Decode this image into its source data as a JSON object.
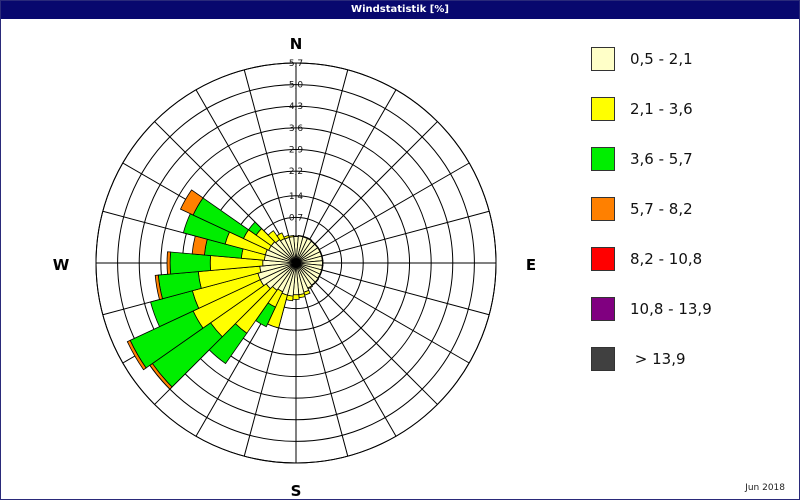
{
  "window": {
    "title": "Windstatistik [%]"
  },
  "footer": {
    "date": "Jun 2018"
  },
  "chart_data": {
    "type": "wind-rose",
    "title": "Windstatistik [%]",
    "unit": "%",
    "directions": [
      "N",
      "E",
      "S",
      "W"
    ],
    "radial_ticks": [
      "0,7",
      "1,4",
      "2,2",
      "2,9",
      "3,6",
      "4,3",
      "5,0",
      "5,7"
    ],
    "radial_values": [
      0.7,
      1.4,
      2.2,
      2.9,
      3.6,
      4.3,
      5.0,
      5.7
    ],
    "radial_max": 5.7,
    "sector_count": 36,
    "sector_step_deg": 10,
    "bins": [
      {
        "label": "0,5 - 2,1",
        "color": "#ffffc8"
      },
      {
        "label": "2,1 - 3,6",
        "color": "#ffff00"
      },
      {
        "label": "3,6 - 5,7",
        "color": "#00ee00"
      },
      {
        "label": "5,7 - 8,2",
        "color": "#ff8000"
      },
      {
        "label": "8,2 - 10,8",
        "color": "#ff0000"
      },
      {
        "label": "10,8 - 13,9",
        "color": "#800080"
      },
      {
        "label": " > 13,9",
        "color": "#404040"
      }
    ],
    "sectors": [
      {
        "deg": 0,
        "cum": [
          0.08,
          0.1
        ]
      },
      {
        "deg": 10,
        "cum": [
          0.1,
          0.12
        ]
      },
      {
        "deg": 20,
        "cum": [
          0.1,
          0.12
        ]
      },
      {
        "deg": 30,
        "cum": [
          0.1,
          0.12
        ]
      },
      {
        "deg": 40,
        "cum": [
          0.08,
          0.1
        ]
      },
      {
        "deg": 50,
        "cum": [
          0.08,
          0.1
        ]
      },
      {
        "deg": 60,
        "cum": [
          0.08,
          0.1
        ]
      },
      {
        "deg": 70,
        "cum": [
          0.08,
          0.1
        ]
      },
      {
        "deg": 80,
        "cum": [
          0.08,
          0.1
        ]
      },
      {
        "deg": 90,
        "cum": [
          0.08,
          0.1
        ]
      },
      {
        "deg": 100,
        "cum": [
          0.08,
          0.1
        ]
      },
      {
        "deg": 110,
        "cum": [
          0.08,
          0.1
        ]
      },
      {
        "deg": 120,
        "cum": [
          0.08,
          0.1
        ]
      },
      {
        "deg": 130,
        "cum": [
          0.1,
          0.12
        ]
      },
      {
        "deg": 140,
        "cum": [
          0.1,
          0.12
        ]
      },
      {
        "deg": 150,
        "cum": [
          0.12,
          0.15
        ]
      },
      {
        "deg": 160,
        "cum": [
          0.2,
          0.3
        ]
      },
      {
        "deg": 170,
        "cum": [
          0.25,
          0.35
        ]
      },
      {
        "deg": 180,
        "cum": [
          0.25,
          0.4
        ]
      },
      {
        "deg": 190,
        "cum": [
          0.3,
          0.45
        ]
      },
      {
        "deg": 200,
        "cum": [
          0.3,
          1.4
        ]
      },
      {
        "deg": 210,
        "cum": [
          0.25,
          0.8,
          1.5
        ]
      },
      {
        "deg": 220,
        "cum": [
          0.3,
          2.0,
          3.2
        ]
      },
      {
        "deg": 230,
        "cum": [
          0.4,
          2.6,
          4.9,
          5.0
        ]
      },
      {
        "deg": 240,
        "cum": [
          0.5,
          2.9,
          5.15,
          5.25
        ]
      },
      {
        "deg": 250,
        "cum": [
          0.5,
          2.7,
          4.1
        ]
      },
      {
        "deg": 260,
        "cum": [
          0.4,
          2.4,
          3.7,
          3.8
        ]
      },
      {
        "deg": 270,
        "cum": [
          0.3,
          2.0,
          3.3,
          3.4
        ]
      },
      {
        "deg": 280,
        "cum": [
          0.25,
          1.0,
          2.2,
          2.6
        ]
      },
      {
        "deg": 290,
        "cum": [
          0.25,
          1.6,
          3.0
        ]
      },
      {
        "deg": 300,
        "cum": [
          0.2,
          1.1,
          2.9,
          3.35
        ]
      },
      {
        "deg": 310,
        "cum": [
          0.2,
          0.8,
          1.1
        ]
      },
      {
        "deg": 320,
        "cum": [
          0.15,
          0.5
        ]
      },
      {
        "deg": 330,
        "cum": [
          0.1,
          0.3
        ]
      },
      {
        "deg": 340,
        "cum": [
          0.08,
          0.15
        ]
      },
      {
        "deg": 350,
        "cum": [
          0.08,
          0.12
        ]
      }
    ]
  }
}
